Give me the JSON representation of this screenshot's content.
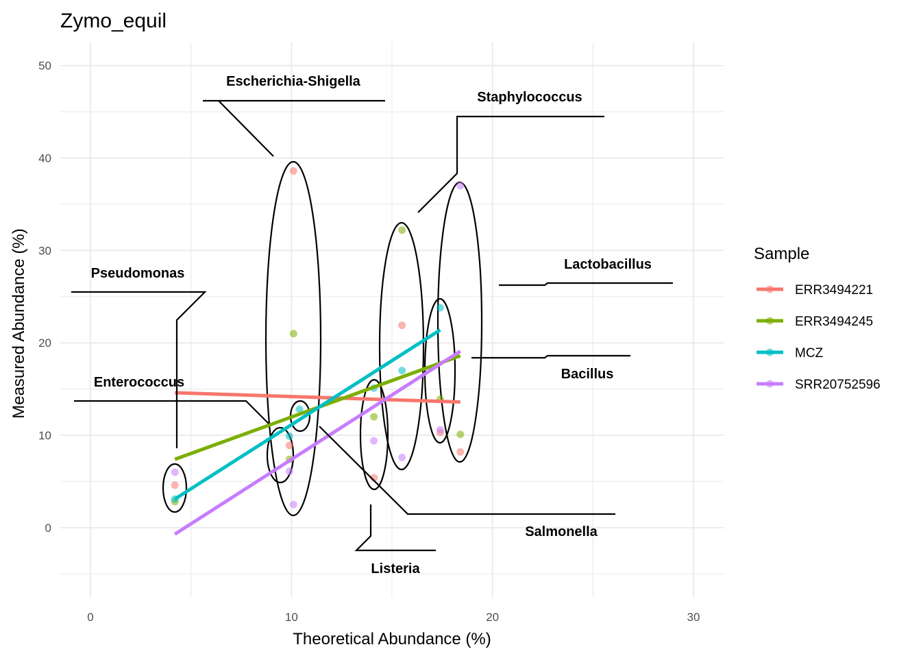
{
  "chart_data": {
    "type": "scatter",
    "title": "Zymo_equil",
    "xlabel": "Theoretical Abundance (%)",
    "ylabel": "Measured Abundance (%)",
    "xlim": [
      -1.5,
      31.5
    ],
    "ylim": [
      -7.5,
      52.5
    ],
    "x_ticks": [
      0,
      10,
      20,
      30
    ],
    "x_tick_labels": [
      "0",
      "10",
      "20",
      "30"
    ],
    "y_ticks": [
      0,
      10,
      20,
      30,
      40,
      50
    ],
    "y_tick_labels": [
      "0",
      "10",
      "20",
      "30",
      "40",
      "50"
    ],
    "grid": true,
    "legend": {
      "title": "Sample",
      "position": "right"
    },
    "series": [
      {
        "name": "ERR3494221",
        "color": "#F8766D",
        "points": [
          [
            4.2,
            4.6
          ],
          [
            9.9,
            8.9
          ],
          [
            10.1,
            38.6
          ],
          [
            14.1,
            5.4
          ],
          [
            15.5,
            21.9
          ],
          [
            17.4,
            10.3
          ],
          [
            18.4,
            8.2
          ]
        ],
        "trend": [
          [
            4.2,
            14.6
          ],
          [
            18.4,
            13.6
          ]
        ]
      },
      {
        "name": "ERR3494245",
        "color": "#7CAE00",
        "points": [
          [
            4.2,
            2.8
          ],
          [
            9.9,
            7.4
          ],
          [
            10.1,
            21.0
          ],
          [
            14.1,
            12.0
          ],
          [
            15.5,
            32.2
          ],
          [
            17.4,
            13.9
          ],
          [
            18.4,
            10.1
          ]
        ],
        "trend": [
          [
            4.2,
            7.4
          ],
          [
            18.4,
            18.6
          ]
        ]
      },
      {
        "name": "MCZ",
        "color": "#00BFC4",
        "points": [
          [
            4.2,
            3.1
          ],
          [
            9.9,
            9.9
          ],
          [
            10.4,
            12.8
          ],
          [
            14.1,
            15.1
          ],
          [
            15.5,
            17.0
          ],
          [
            17.4,
            23.8
          ]
        ],
        "trend": [
          [
            4.2,
            3.1
          ],
          [
            17.4,
            21.4
          ]
        ]
      },
      {
        "name": "SRR20752596",
        "color": "#C77CFF",
        "points": [
          [
            4.2,
            6.0
          ],
          [
            9.9,
            6.1
          ],
          [
            10.1,
            2.5
          ],
          [
            14.1,
            9.4
          ],
          [
            15.5,
            7.6
          ],
          [
            17.4,
            10.6
          ],
          [
            18.4,
            37.0
          ]
        ],
        "trend": [
          [
            4.2,
            -0.7
          ],
          [
            18.4,
            19.1
          ]
        ]
      }
    ],
    "annotations": [
      {
        "label": "Pseudomonas"
      },
      {
        "label": "Escherichia-Shigella"
      },
      {
        "label": "Staphylococcus"
      },
      {
        "label": "Lactobacillus"
      },
      {
        "label": "Enterococcus"
      },
      {
        "label": "Bacillus"
      },
      {
        "label": "Salmonella"
      },
      {
        "label": "Listeria"
      }
    ]
  }
}
